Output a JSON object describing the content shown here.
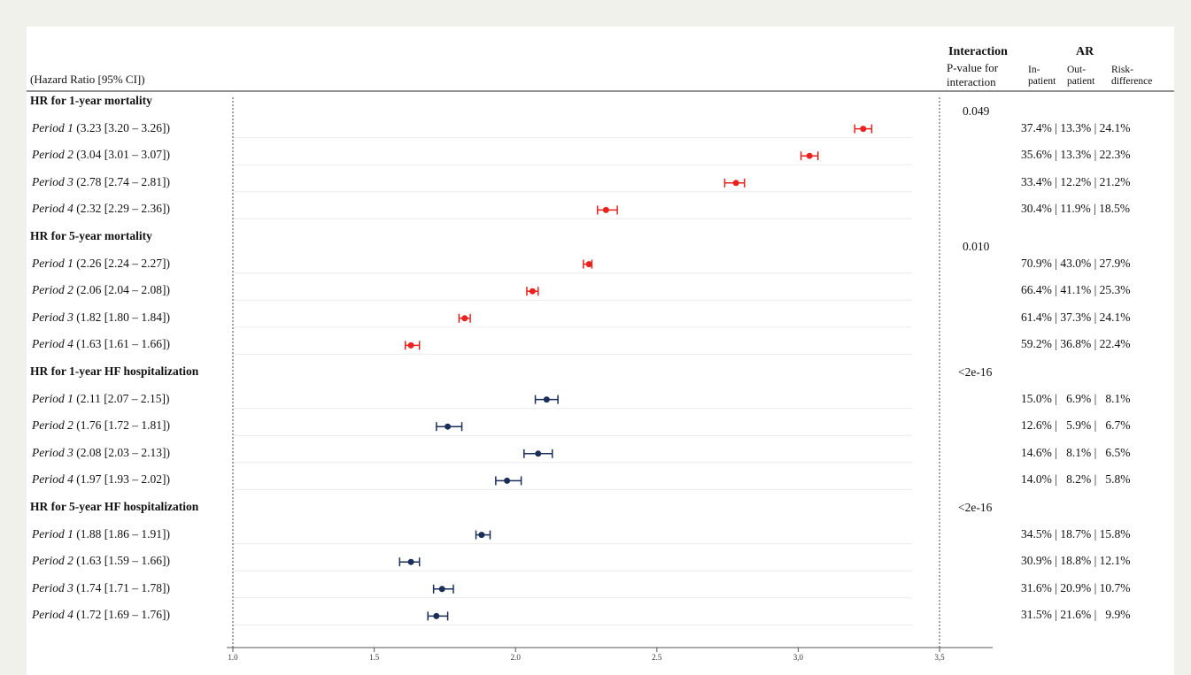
{
  "header": {
    "left_caption": "(Hazard Ratio [95% CI])",
    "interaction_title": "Interaction",
    "interaction_sub1": "P-value for",
    "interaction_sub2": "interaction",
    "ar_title": "AR",
    "ar_col1_line1": "In-",
    "ar_col1_line2": "patient",
    "ar_col2_line1": "Out-",
    "ar_col2_line2": "patient",
    "ar_col3_line1": "Risk-",
    "ar_col3_line2": "difference"
  },
  "colors": {
    "mortality": "#e8221f",
    "hospitalization": "#1a2e5a"
  },
  "chart_data": {
    "type": "forest",
    "xlim": [
      1.0,
      3.5
    ],
    "x_ticks": [
      "1.0",
      "1.5",
      "2.0",
      "2.5",
      "3,0",
      "3,5"
    ],
    "x_tick_values": [
      1.0,
      1.5,
      2.0,
      2.5,
      3.0,
      3.5
    ],
    "reference_lines": [
      1.0,
      3.5
    ],
    "groups": [
      {
        "title": "HR for 1-year mortality",
        "p_value": "0.049",
        "color_key": "mortality",
        "rows": [
          {
            "period": "Period 1",
            "stat": "(3.23 [3.20 – 3.26])",
            "hr": 3.23,
            "lo": 3.2,
            "hi": 3.26,
            "ar": "37.4% | 13.3% | 24.1%"
          },
          {
            "period": "Period 2",
            "stat": "(3.04 [3.01 – 3.07])",
            "hr": 3.04,
            "lo": 3.01,
            "hi": 3.07,
            "ar": "35.6% | 13.3% | 22.3%"
          },
          {
            "period": "Period 3",
            "stat": "(2.78 [2.74 – 2.81])",
            "hr": 2.78,
            "lo": 2.74,
            "hi": 2.81,
            "ar": "33.4% | 12.2% | 21.2%"
          },
          {
            "period": "Period 4",
            "stat": "(2.32 [2.29 – 2.36])",
            "hr": 2.32,
            "lo": 2.29,
            "hi": 2.36,
            "ar": "30.4% | 11.9% | 18.5%"
          }
        ]
      },
      {
        "title": "HR for 5-year mortality",
        "p_value": "0.010",
        "color_key": "mortality",
        "rows": [
          {
            "period": "Period 1",
            "stat": "(2.26 [2.24 – 2.27])",
            "hr": 2.26,
            "lo": 2.24,
            "hi": 2.27,
            "ar": "70.9% | 43.0% | 27.9%"
          },
          {
            "period": "Period 2",
            "stat": "(2.06 [2.04 – 2.08])",
            "hr": 2.06,
            "lo": 2.04,
            "hi": 2.08,
            "ar": "66.4% | 41.1% | 25.3%"
          },
          {
            "period": "Period 3",
            "stat": "(1.82 [1.80 – 1.84])",
            "hr": 1.82,
            "lo": 1.8,
            "hi": 1.84,
            "ar": "61.4% | 37.3% | 24.1%"
          },
          {
            "period": "Period 4",
            "stat": "(1.63 [1.61 – 1.66])",
            "hr": 1.63,
            "lo": 1.61,
            "hi": 1.66,
            "ar": "59.2% | 36.8% | 22.4%"
          }
        ]
      },
      {
        "title": "HR for 1-year HF hospitalization",
        "p_value": "<2e-16",
        "color_key": "hospitalization",
        "rows": [
          {
            "period": "Period 1",
            "stat": "(2.11 [2.07 – 2.15])",
            "hr": 2.11,
            "lo": 2.07,
            "hi": 2.15,
            "ar": "15.0% |   6.9% |   8.1%"
          },
          {
            "period": "Period 2",
            "stat": "(1.76 [1.72 – 1.81])",
            "hr": 1.76,
            "lo": 1.72,
            "hi": 1.81,
            "ar": "12.6% |   5.9% |   6.7%"
          },
          {
            "period": "Period 3",
            "stat": "(2.08 [2.03 – 2.13])",
            "hr": 2.08,
            "lo": 2.03,
            "hi": 2.13,
            "ar": "14.6% |   8.1% |   6.5%"
          },
          {
            "period": "Period 4",
            "stat": "(1.97 [1.93 – 2.02])",
            "hr": 1.97,
            "lo": 1.93,
            "hi": 2.02,
            "ar": "14.0% |   8.2% |   5.8%"
          }
        ]
      },
      {
        "title": "HR for 5-year HF hospitalization",
        "p_value": "<2e-16",
        "color_key": "hospitalization",
        "rows": [
          {
            "period": "Period 1",
            "stat": "(1.88 [1.86 – 1.91])",
            "hr": 1.88,
            "lo": 1.86,
            "hi": 1.91,
            "ar": "34.5% | 18.7% | 15.8%"
          },
          {
            "period": "Period 2",
            "stat": "(1.63 [1.59 – 1.66])",
            "hr": 1.63,
            "lo": 1.59,
            "hi": 1.66,
            "ar": "30.9% | 18.8% | 12.1%"
          },
          {
            "period": "Period 3",
            "stat": "(1.74 [1.71 – 1.78])",
            "hr": 1.74,
            "lo": 1.71,
            "hi": 1.78,
            "ar": "31.6% | 20.9% | 10.7%"
          },
          {
            "period": "Period 4",
            "stat": "(1.72 [1.69 – 1.76])",
            "hr": 1.72,
            "lo": 1.69,
            "hi": 1.76,
            "ar": "31.5% | 21.6% |   9.9%"
          }
        ]
      }
    ]
  }
}
